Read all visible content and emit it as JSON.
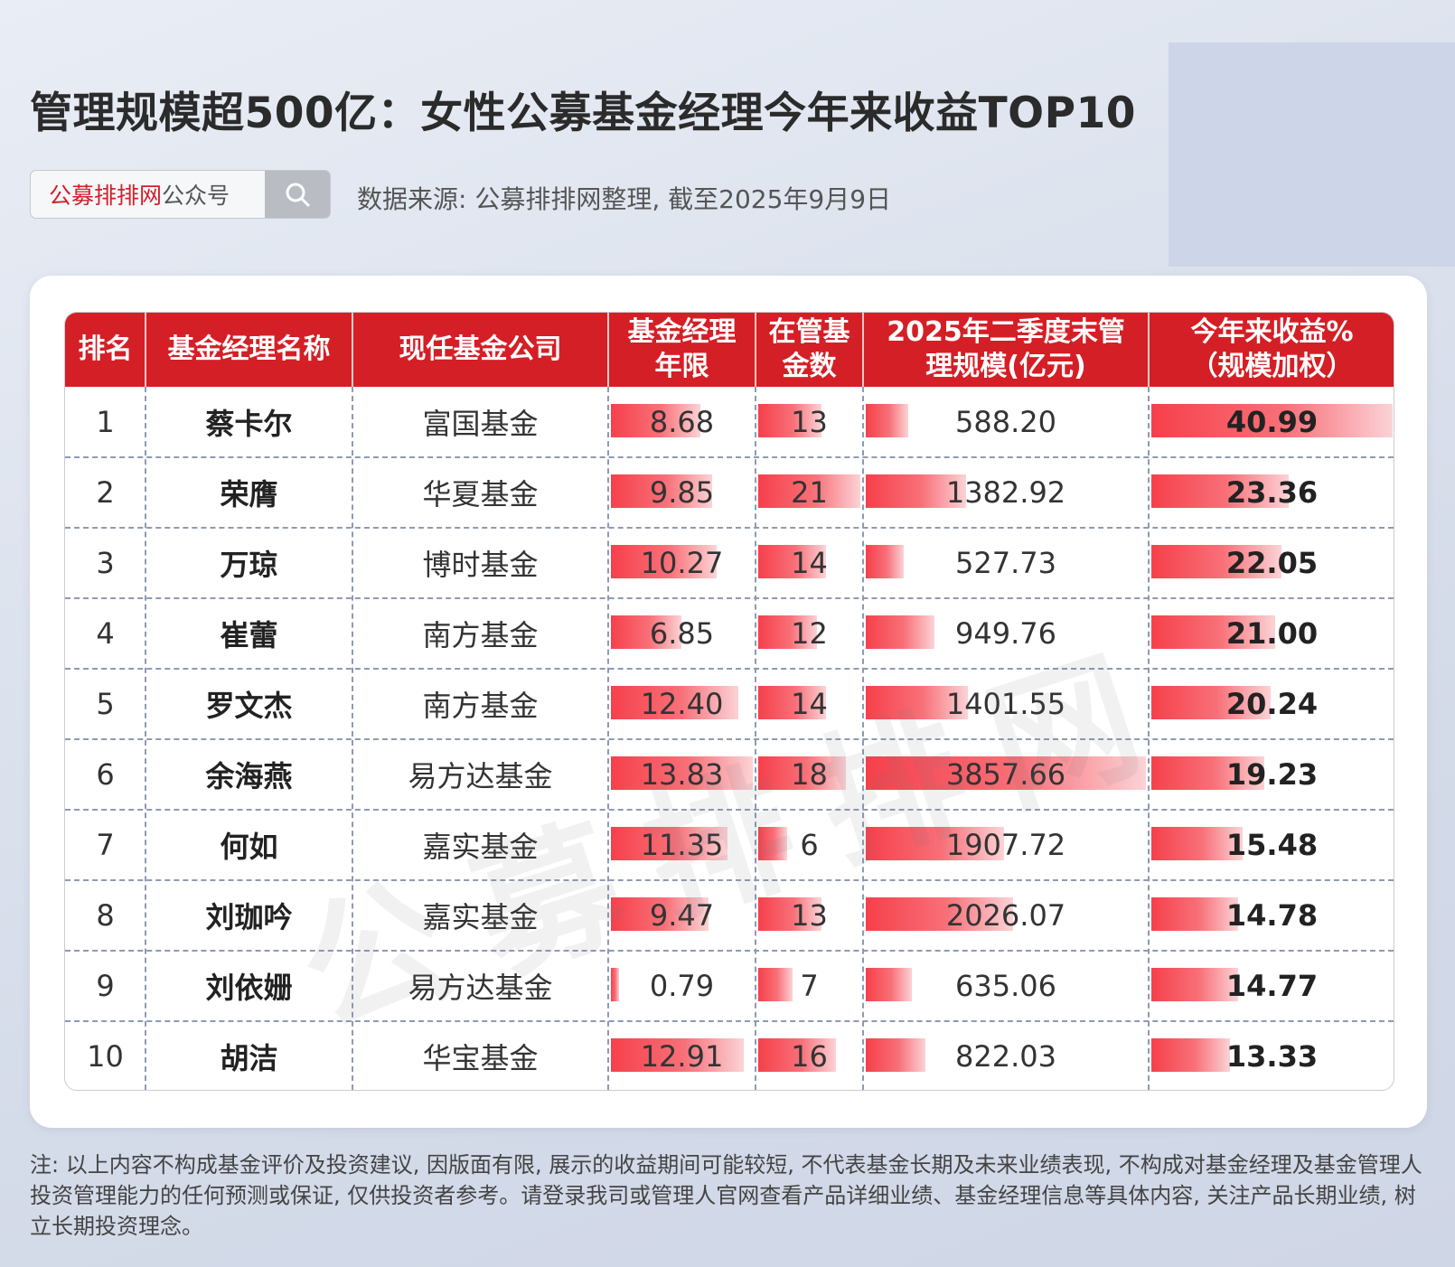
{
  "title": "管理规模超500亿：女性公募基金经理今年来收益TOP10",
  "search": {
    "brand": "公募排排网",
    "suffix": "公众号",
    "icon": "search-icon"
  },
  "source": "数据来源: 公募排排网整理, 截至2025年9月9日",
  "watermark": "公募排排网",
  "colors": {
    "header": "#d41f26",
    "bar": "#f6404b",
    "brand_red": "#d21f2a"
  },
  "chart_data": {
    "type": "table",
    "columns": [
      "排名",
      "基金经理名称",
      "现任基金公司",
      "基金经理年限",
      "在管基金数",
      "2025年二季度末管理规模(亿元)",
      "今年来收益%(规模加权)"
    ],
    "header_lines": [
      [
        "排名"
      ],
      [
        "基金经理名称"
      ],
      [
        "现任基金公司"
      ],
      [
        "基金经理",
        "年限"
      ],
      [
        "在管基",
        "金数"
      ],
      [
        "2025年二季度末管",
        "理规模(亿元)"
      ],
      [
        "今年来收益%",
        "（规模加权）"
      ]
    ],
    "rows": [
      {
        "rank": "1",
        "name": "蔡卡尔",
        "company": "富国基金",
        "years": "8.68",
        "funds": "13",
        "aum": "588.20",
        "return": "40.99"
      },
      {
        "rank": "2",
        "name": "荣膺",
        "company": "华夏基金",
        "years": "9.85",
        "funds": "21",
        "aum": "1382.92",
        "return": "23.36"
      },
      {
        "rank": "3",
        "name": "万琼",
        "company": "博时基金",
        "years": "10.27",
        "funds": "14",
        "aum": "527.73",
        "return": "22.05"
      },
      {
        "rank": "4",
        "name": "崔蕾",
        "company": "南方基金",
        "years": "6.85",
        "funds": "12",
        "aum": "949.76",
        "return": "21.00"
      },
      {
        "rank": "5",
        "name": "罗文杰",
        "company": "南方基金",
        "years": "12.40",
        "funds": "14",
        "aum": "1401.55",
        "return": "20.24"
      },
      {
        "rank": "6",
        "name": "余海燕",
        "company": "易方达基金",
        "years": "13.83",
        "funds": "18",
        "aum": "3857.66",
        "return": "19.23"
      },
      {
        "rank": "7",
        "name": "何如",
        "company": "嘉实基金",
        "years": "11.35",
        "funds": "6",
        "aum": "1907.72",
        "return": "15.48"
      },
      {
        "rank": "8",
        "name": "刘珈吟",
        "company": "嘉实基金",
        "years": "9.47",
        "funds": "13",
        "aum": "2026.07",
        "return": "14.78"
      },
      {
        "rank": "9",
        "name": "刘依姗",
        "company": "易方达基金",
        "years": "0.79",
        "funds": "7",
        "aum": "635.06",
        "return": "14.77"
      },
      {
        "rank": "10",
        "name": "胡洁",
        "company": "华宝基金",
        "years": "12.91",
        "funds": "16",
        "aum": "822.03",
        "return": "13.33"
      }
    ]
  },
  "note": "注: 以上内容不构成基金评价及投资建议, 因版面有限, 展示的收益期间可能较短, 不代表基金长期及未来业绩表现, 不构成对基金经理及基金管理人投资管理能力的任何预测或保证, 仅供投资者参考。请登录我司或管理人官网查看产品详细业绩、基金经理信息等具体内容, 关注产品长期业绩, 树立长期投资理念。"
}
